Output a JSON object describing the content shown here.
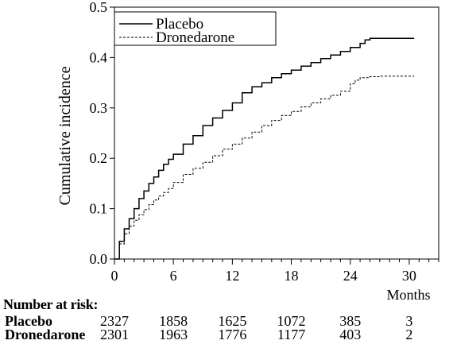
{
  "chart_data": {
    "type": "line",
    "ylabel": "Cumulative incidence",
    "xlabel": "Months",
    "xlim": [
      0,
      33
    ],
    "ylim": [
      0,
      0.5
    ],
    "x_ticks": [
      0,
      6,
      12,
      18,
      24,
      30
    ],
    "y_ticks": [
      0.0,
      0.1,
      0.2,
      0.3,
      0.4,
      0.5
    ],
    "y_tick_labels": [
      "0.0",
      "0.1",
      "0.2",
      "0.3",
      "0.4",
      "0.5"
    ],
    "legend_position": "top-left",
    "series": [
      {
        "name": "Placebo",
        "style": "solid",
        "x": [
          0,
          0.5,
          1,
          1.5,
          2,
          2.5,
          3,
          3.5,
          4,
          4.5,
          5,
          5.5,
          6,
          7,
          8,
          9,
          10,
          11,
          12,
          13,
          14,
          15,
          16,
          17,
          18,
          19,
          20,
          21,
          22,
          23,
          24,
          25,
          25.5,
          26,
          27,
          28,
          29,
          30.5
        ],
        "y": [
          0,
          0.035,
          0.06,
          0.08,
          0.1,
          0.12,
          0.135,
          0.15,
          0.163,
          0.176,
          0.188,
          0.198,
          0.208,
          0.228,
          0.245,
          0.265,
          0.28,
          0.295,
          0.31,
          0.33,
          0.342,
          0.35,
          0.36,
          0.368,
          0.375,
          0.383,
          0.39,
          0.398,
          0.405,
          0.412,
          0.42,
          0.428,
          0.435,
          0.438,
          0.438,
          0.438,
          0.438,
          0.438
        ]
      },
      {
        "name": "Dronedarone",
        "style": "dashed",
        "x": [
          0,
          0.5,
          1,
          1.5,
          2,
          2.5,
          3,
          3.5,
          4,
          4.5,
          5,
          5.5,
          6,
          7,
          8,
          9,
          10,
          11,
          12,
          13,
          14,
          15,
          16,
          17,
          18,
          19,
          20,
          21,
          22,
          23,
          24,
          24.5,
          25,
          26,
          27,
          28,
          29,
          30.5
        ],
        "y": [
          0,
          0.03,
          0.05,
          0.065,
          0.077,
          0.088,
          0.098,
          0.108,
          0.117,
          0.125,
          0.132,
          0.14,
          0.152,
          0.168,
          0.18,
          0.192,
          0.205,
          0.218,
          0.228,
          0.24,
          0.252,
          0.265,
          0.275,
          0.285,
          0.293,
          0.302,
          0.31,
          0.318,
          0.325,
          0.333,
          0.348,
          0.355,
          0.36,
          0.362,
          0.363,
          0.363,
          0.363,
          0.363
        ]
      }
    ]
  },
  "risk_table": {
    "title": "Number at risk:",
    "months": [
      0,
      6,
      12,
      18,
      24,
      30
    ],
    "rows": [
      {
        "label": "Placebo",
        "values": [
          "2327",
          "1858",
          "1625",
          "1072",
          "385",
          "3"
        ]
      },
      {
        "label": "Dronedarone",
        "values": [
          "2301",
          "1963",
          "1776",
          "1177",
          "403",
          "2"
        ]
      }
    ]
  }
}
